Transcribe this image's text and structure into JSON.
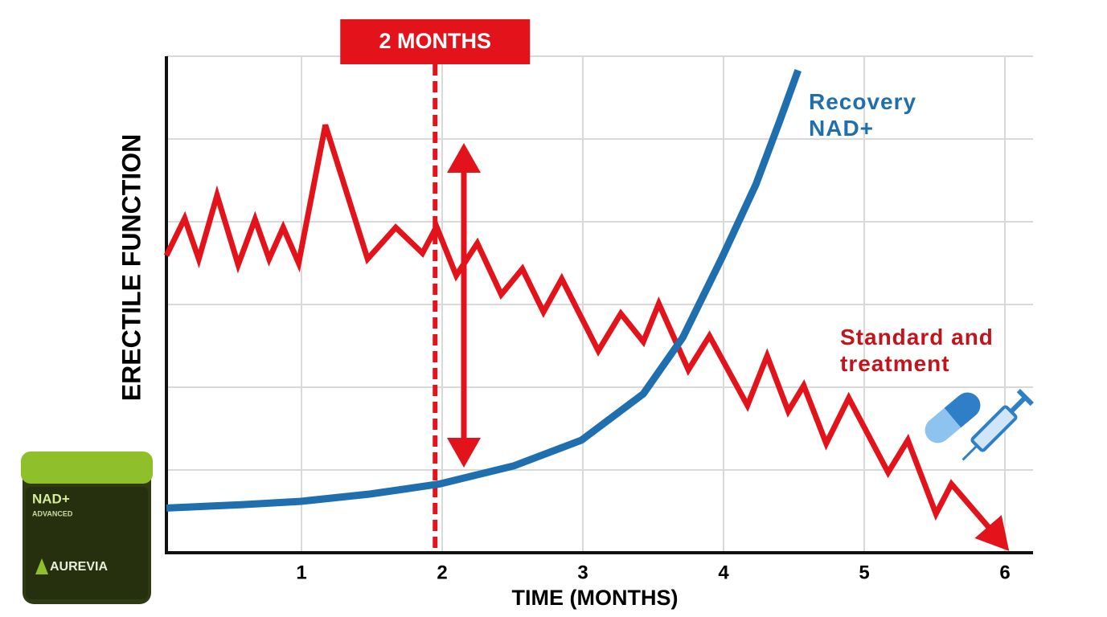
{
  "chart_data": {
    "type": "line",
    "title": "2 MONTHS",
    "x_label": "TIME (MONTHS)",
    "y_label": "ERECTILE FUNCTION",
    "xlim": [
      0,
      6.2
    ],
    "xticks": [
      1,
      2,
      3,
      4,
      5,
      6
    ],
    "ylim": [
      0,
      6
    ],
    "grid": true,
    "marker_x": 1.95,
    "series": [
      {
        "name": "Standard and treatment",
        "color": "#e3131b",
        "x": [
          0.04,
          0.17,
          0.27,
          0.4,
          0.55,
          0.67,
          0.77,
          0.87,
          0.98,
          1.17,
          1.47,
          1.67,
          1.86,
          1.96,
          2.1,
          2.25,
          2.42,
          2.57,
          2.72,
          2.85,
          3.11,
          3.27,
          3.43,
          3.54,
          3.75,
          3.9,
          4.17,
          4.31,
          4.46,
          4.57,
          4.73,
          4.89,
          5.17,
          5.31,
          5.51,
          5.62,
          6.0
        ],
        "values": [
          3.59,
          4.04,
          3.55,
          4.32,
          3.48,
          4.03,
          3.55,
          3.93,
          3.5,
          5.17,
          3.55,
          3.93,
          3.62,
          3.94,
          3.35,
          3.74,
          3.12,
          3.43,
          2.91,
          3.31,
          2.44,
          2.89,
          2.55,
          3.01,
          2.21,
          2.62,
          1.78,
          2.38,
          1.71,
          2.02,
          1.32,
          1.87,
          0.97,
          1.36,
          0.47,
          0.83,
          0.08
        ]
      },
      {
        "name": "Recovery NAD+",
        "color": "#1f6fae",
        "x": [
          0.04,
          0.57,
          0.99,
          1.49,
          1.98,
          2.51,
          2.99,
          3.43,
          3.71,
          3.99,
          4.23,
          4.4,
          4.53
        ],
        "values": [
          0.54,
          0.58,
          0.62,
          0.71,
          0.83,
          1.05,
          1.36,
          1.92,
          2.6,
          3.57,
          4.45,
          5.22,
          5.83
        ]
      }
    ],
    "product": {
      "name": "NAD+",
      "subtitle": "ADVANCED",
      "brand": "AUREVIA"
    }
  }
}
